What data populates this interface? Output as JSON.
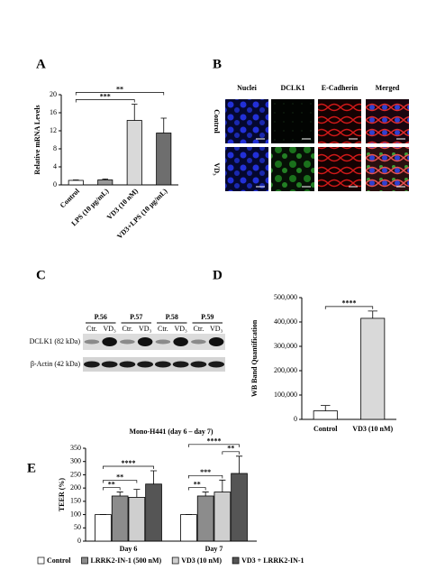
{
  "chart_data": [
    {
      "type": "bar",
      "panel": "A",
      "ylabel": "Relative mRNA Levels",
      "categories": [
        "Control",
        "LPS (10 μg/mL)",
        "VD3 (10 nM)",
        "VD3+LPS (10 μg/mL)"
      ],
      "values": [
        1,
        1.1,
        14.3,
        11.5
      ],
      "errors": [
        0.1,
        0.2,
        3.6,
        3.3
      ],
      "colors": [
        "#ffffff",
        "#9a9a9a",
        "#d9d9d9",
        "#6e6e6e"
      ],
      "ylim": [
        0,
        20
      ],
      "yticks": [
        0,
        4,
        8,
        12,
        16,
        20
      ],
      "annotations": [
        {
          "text": "***",
          "from": "Control",
          "to": "VD3 (10 nM)"
        },
        {
          "text": "**",
          "from": "Control",
          "to": "VD3+LPS (10 μg/mL)"
        }
      ]
    },
    {
      "type": "bar",
      "panel": "D",
      "ylabel": "WB Band Quantification",
      "categories": [
        "Control",
        "VD3 (10 nM)"
      ],
      "values": [
        35000,
        415000
      ],
      "errors": [
        22000,
        30000
      ],
      "colors": [
        "#ffffff",
        "#d9d9d9"
      ],
      "ylim": [
        0,
        500000
      ],
      "yticks": [
        0,
        {
          "value": 100000,
          "label": "100,000"
        },
        {
          "value": 200000,
          "label": "200,000"
        },
        {
          "value": 300000,
          "label": "300,000"
        },
        {
          "value": 400000,
          "label": "400,000"
        },
        {
          "value": 500000,
          "label": "500,000"
        }
      ],
      "annotations": [
        {
          "text": "****",
          "from": "Control",
          "to": "VD3 (10 nM)"
        }
      ]
    },
    {
      "type": "bar",
      "panel": "E",
      "title": "Mono-H441 (day 6 – day 7)",
      "ylabel": "TEER (%)",
      "categories": [
        "Day 6",
        "Day 7"
      ],
      "series": [
        {
          "name": "Control",
          "color": "#ffffff",
          "values": [
            100,
            100
          ],
          "errors": [
            0,
            0
          ]
        },
        {
          "name": "LRRK2-IN-1 (500 nM)",
          "color": "#8c8c8c",
          "values": [
            170,
            170
          ],
          "errors": [
            15,
            15
          ]
        },
        {
          "name": "VD3 (10 nM)",
          "color": "#cfcfcf",
          "values": [
            165,
            185
          ],
          "errors": [
            30,
            45
          ]
        },
        {
          "name": "VD3 + LRRK2-IN-1",
          "color": "#555555",
          "values": [
            215,
            255
          ],
          "errors": [
            50,
            65
          ]
        }
      ],
      "ylim": [
        0,
        350
      ],
      "yticks": [
        0,
        50,
        100,
        150,
        200,
        250,
        300,
        350
      ],
      "annotations": [
        {
          "text": "**",
          "category": "Day 6",
          "from": "Control",
          "to": "LRRK2-IN-1 (500 nM)"
        },
        {
          "text": "**",
          "category": "Day 6",
          "from": "Control",
          "to": "VD3 (10 nM)"
        },
        {
          "text": "****",
          "category": "Day 6",
          "from": "Control",
          "to": "VD3 + LRRK2-IN-1"
        },
        {
          "text": "**",
          "category": "Day 7",
          "from": "Control",
          "to": "LRRK2-IN-1 (500 nM)"
        },
        {
          "text": "***",
          "category": "Day 7",
          "from": "Control",
          "to": "VD3 (10 nM)"
        },
        {
          "text": "**",
          "category": "Day 7",
          "from": "VD3 (10 nM)",
          "to": "VD3 + LRRK2-IN-1"
        },
        {
          "text": "****",
          "category": "Day 7",
          "from": "Control",
          "to": "VD3 + LRRK2-IN-1"
        }
      ]
    }
  ],
  "panel_b": {
    "label": "B",
    "columns": [
      "Nuclei",
      "DCLK1",
      "E-Cadherin",
      "Merged"
    ],
    "rows": [
      "Control",
      "VD₃"
    ]
  },
  "panel_c": {
    "label": "C",
    "passages": [
      "P.56",
      "P.57",
      "P.58",
      "P.59"
    ],
    "lanes": [
      "Ctr.",
      "VD₃"
    ],
    "rows": [
      "DCLK1 (82 kDa)",
      "β-Actin (42 kDa)"
    ]
  }
}
